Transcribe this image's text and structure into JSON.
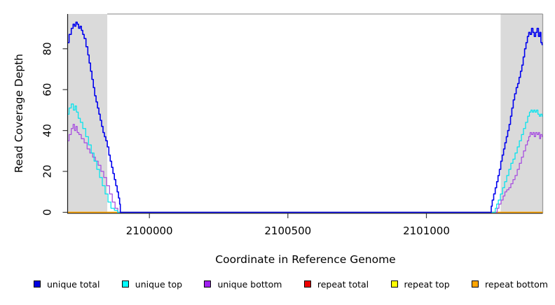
{
  "chart_data": {
    "type": "line",
    "title": "",
    "xlabel": "Coordinate in Reference Genome",
    "ylabel": "Read Coverage Depth",
    "xlim": [
      2099706,
      2101420
    ],
    "ylim": [
      0,
      97
    ],
    "xticks": [
      2100000,
      2100500,
      2101000
    ],
    "yticks": [
      0,
      20,
      40,
      60,
      80
    ],
    "grid": "off",
    "legend_position": "bottom",
    "shaded_regions": [
      {
        "name": "left-flank",
        "from": 2099706,
        "to": 2099848,
        "color": "#DADADA"
      },
      {
        "name": "right-flank",
        "from": 2101268,
        "to": 2101420,
        "color": "#DADADA"
      }
    ],
    "series": [
      {
        "name": "unique total",
        "color": "#0000EE",
        "width": 1.6,
        "points": [
          [
            2099706,
            83
          ],
          [
            2099714,
            87
          ],
          [
            2099722,
            90
          ],
          [
            2099727,
            92
          ],
          [
            2099732,
            91
          ],
          [
            2099737,
            93
          ],
          [
            2099742,
            92
          ],
          [
            2099747,
            90
          ],
          [
            2099752,
            91
          ],
          [
            2099757,
            89
          ],
          [
            2099762,
            87
          ],
          [
            2099767,
            85
          ],
          [
            2099775,
            81
          ],
          [
            2099780,
            77
          ],
          [
            2099785,
            73
          ],
          [
            2099790,
            69
          ],
          [
            2099795,
            65
          ],
          [
            2099800,
            61
          ],
          [
            2099805,
            57
          ],
          [
            2099810,
            54
          ],
          [
            2099815,
            51
          ],
          [
            2099820,
            48
          ],
          [
            2099825,
            45
          ],
          [
            2099830,
            42
          ],
          [
            2099835,
            39
          ],
          [
            2099840,
            37
          ],
          [
            2099845,
            35
          ],
          [
            2099851,
            32
          ],
          [
            2099856,
            28
          ],
          [
            2099861,
            25
          ],
          [
            2099866,
            22
          ],
          [
            2099871,
            19
          ],
          [
            2099876,
            16
          ],
          [
            2099881,
            13
          ],
          [
            2099886,
            10
          ],
          [
            2099891,
            7
          ],
          [
            2099894,
            4
          ],
          [
            2099896,
            0
          ],
          [
            2101233,
            0
          ],
          [
            2101235,
            3
          ],
          [
            2101240,
            6
          ],
          [
            2101246,
            9
          ],
          [
            2101251,
            12
          ],
          [
            2101256,
            15
          ],
          [
            2101261,
            18
          ],
          [
            2101266,
            21
          ],
          [
            2101271,
            25
          ],
          [
            2101276,
            28
          ],
          [
            2101281,
            31
          ],
          [
            2101286,
            34
          ],
          [
            2101291,
            37
          ],
          [
            2101296,
            40
          ],
          [
            2101301,
            43
          ],
          [
            2101306,
            47
          ],
          [
            2101311,
            51
          ],
          [
            2101316,
            55
          ],
          [
            2101321,
            58
          ],
          [
            2101327,
            61
          ],
          [
            2101332,
            63
          ],
          [
            2101337,
            66
          ],
          [
            2101342,
            69
          ],
          [
            2101347,
            72
          ],
          [
            2101352,
            76
          ],
          [
            2101357,
            80
          ],
          [
            2101362,
            83
          ],
          [
            2101367,
            86
          ],
          [
            2101372,
            88
          ],
          [
            2101377,
            87
          ],
          [
            2101382,
            90
          ],
          [
            2101387,
            88
          ],
          [
            2101392,
            86
          ],
          [
            2101397,
            88
          ],
          [
            2101402,
            90
          ],
          [
            2101407,
            86
          ],
          [
            2101412,
            88
          ],
          [
            2101415,
            83
          ],
          [
            2101420,
            82
          ]
        ]
      },
      {
        "name": "unique top",
        "color": "#00E4EE",
        "width": 1.25,
        "points": [
          [
            2099706,
            48
          ],
          [
            2099714,
            51
          ],
          [
            2099722,
            53
          ],
          [
            2099729,
            50
          ],
          [
            2099734,
            52
          ],
          [
            2099739,
            49
          ],
          [
            2099747,
            46
          ],
          [
            2099754,
            44
          ],
          [
            2099765,
            41
          ],
          [
            2099775,
            37
          ],
          [
            2099785,
            33
          ],
          [
            2099795,
            29
          ],
          [
            2099805,
            25
          ],
          [
            2099815,
            21
          ],
          [
            2099825,
            17
          ],
          [
            2099835,
            13
          ],
          [
            2099845,
            9
          ],
          [
            2099856,
            5
          ],
          [
            2099866,
            2
          ],
          [
            2099881,
            1
          ],
          [
            2099889,
            0
          ],
          [
            2101246,
            0
          ],
          [
            2101251,
            2
          ],
          [
            2101256,
            4
          ],
          [
            2101263,
            6
          ],
          [
            2101271,
            9
          ],
          [
            2101279,
            12
          ],
          [
            2101286,
            15
          ],
          [
            2101294,
            18
          ],
          [
            2101301,
            21
          ],
          [
            2101309,
            24
          ],
          [
            2101316,
            26
          ],
          [
            2101324,
            29
          ],
          [
            2101332,
            32
          ],
          [
            2101339,
            35
          ],
          [
            2101347,
            38
          ],
          [
            2101354,
            41
          ],
          [
            2101362,
            44
          ],
          [
            2101369,
            47
          ],
          [
            2101375,
            49
          ],
          [
            2101380,
            50
          ],
          [
            2101385,
            49
          ],
          [
            2101390,
            50
          ],
          [
            2101395,
            49
          ],
          [
            2101400,
            50
          ],
          [
            2101405,
            48
          ],
          [
            2101410,
            47
          ],
          [
            2101415,
            48
          ],
          [
            2101420,
            47
          ]
        ]
      },
      {
        "name": "unique bottom",
        "color": "#A64BE0",
        "width": 1.25,
        "points": [
          [
            2099706,
            35
          ],
          [
            2099714,
            38
          ],
          [
            2099722,
            41
          ],
          [
            2099727,
            43
          ],
          [
            2099732,
            40
          ],
          [
            2099737,
            42
          ],
          [
            2099742,
            39
          ],
          [
            2099749,
            38
          ],
          [
            2099759,
            36
          ],
          [
            2099770,
            34
          ],
          [
            2099780,
            31
          ],
          [
            2099790,
            29
          ],
          [
            2099800,
            27
          ],
          [
            2099810,
            25
          ],
          [
            2099820,
            23
          ],
          [
            2099830,
            20
          ],
          [
            2099840,
            17
          ],
          [
            2099851,
            13
          ],
          [
            2099861,
            9
          ],
          [
            2099871,
            5
          ],
          [
            2099881,
            2
          ],
          [
            2099891,
            0
          ],
          [
            2101253,
            0
          ],
          [
            2101258,
            2
          ],
          [
            2101266,
            4
          ],
          [
            2101273,
            6
          ],
          [
            2101281,
            8
          ],
          [
            2101286,
            10
          ],
          [
            2101294,
            11
          ],
          [
            2101301,
            12
          ],
          [
            2101309,
            14
          ],
          [
            2101316,
            16
          ],
          [
            2101324,
            18
          ],
          [
            2101332,
            21
          ],
          [
            2101339,
            24
          ],
          [
            2101347,
            27
          ],
          [
            2101354,
            30
          ],
          [
            2101362,
            33
          ],
          [
            2101367,
            35
          ],
          [
            2101372,
            37
          ],
          [
            2101377,
            39
          ],
          [
            2101382,
            38
          ],
          [
            2101387,
            39
          ],
          [
            2101392,
            37
          ],
          [
            2101397,
            39
          ],
          [
            2101402,
            38
          ],
          [
            2101407,
            39
          ],
          [
            2101410,
            36
          ],
          [
            2101415,
            38
          ],
          [
            2101420,
            37
          ]
        ]
      },
      {
        "name": "repeat total",
        "color": "#EE0000",
        "width": 1.25,
        "points": [
          [
            2099706,
            0
          ],
          [
            2101420,
            0
          ]
        ]
      },
      {
        "name": "repeat top",
        "color": "#FFFF00",
        "width": 1.25,
        "points": [
          [
            2099706,
            0
          ],
          [
            2101420,
            0
          ]
        ]
      },
      {
        "name": "repeat bottom",
        "color": "#FFA500",
        "width": 1.5,
        "points": [
          [
            2099706,
            0
          ],
          [
            2101420,
            0
          ]
        ]
      }
    ]
  },
  "legend": {
    "items": [
      {
        "label": "unique total",
        "color": "#0000E0"
      },
      {
        "label": "unique top",
        "color": "#00FFFF"
      },
      {
        "label": "unique bottom",
        "color": "#A020F0"
      },
      {
        "label": "repeat total",
        "color": "#EE0000"
      },
      {
        "label": "repeat top",
        "color": "#FFFF00"
      },
      {
        "label": "repeat bottom",
        "color": "#FFA500"
      }
    ]
  }
}
